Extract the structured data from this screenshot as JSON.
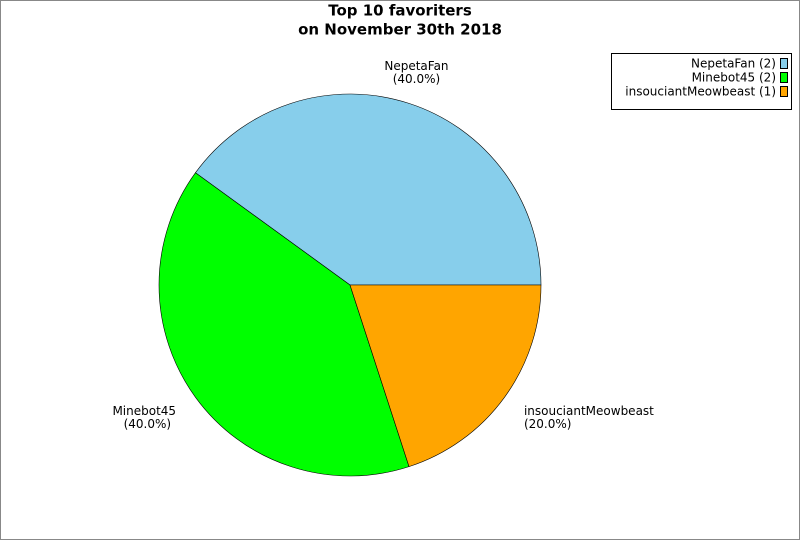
{
  "chart_data": {
    "type": "pie",
    "title": "Top 10 favoriters",
    "subtitle": "on November 30th 2018",
    "categories": [
      "NepetaFan",
      "Minebot45",
      "insouciantMeowbeast"
    ],
    "values": [
      40,
      40,
      20
    ],
    "value_labels": [
      "(40.0%)",
      "(40.0%)",
      "(20.0%)"
    ],
    "colors": [
      "#87ceeb",
      "#00ff00",
      "#ffa500"
    ],
    "legend": [
      "NepetaFan (2)",
      "Minebot45 (2)",
      "insouciantMeowbeast (1)"
    ],
    "legend_position": "top-right"
  }
}
